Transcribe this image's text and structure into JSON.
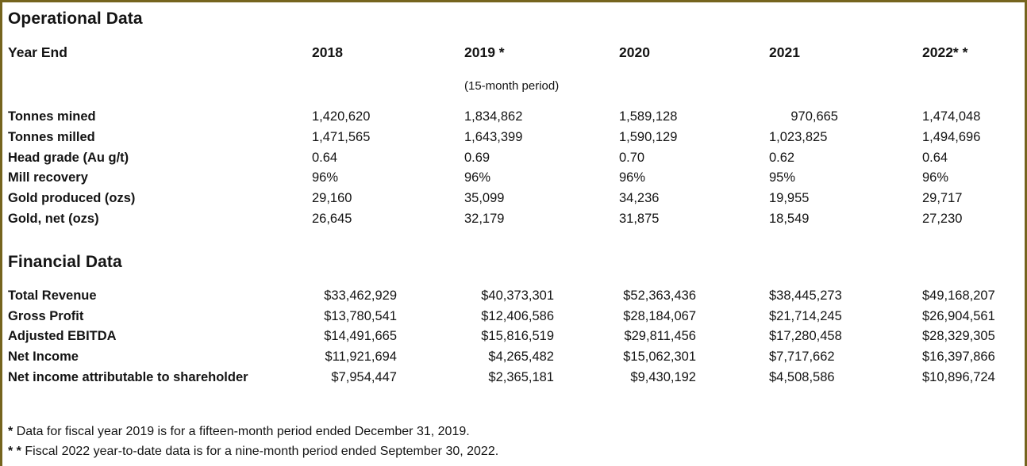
{
  "titles": {
    "operational": "Operational Data",
    "financial": "Financial Data"
  },
  "header": {
    "row_label": "Year End",
    "years": [
      "2018",
      "2019 *",
      "2020",
      "2021",
      "2022* *"
    ],
    "period_note_2019": "(15-month period)"
  },
  "operational": {
    "rows": [
      {
        "label": "Tonnes mined",
        "values": [
          "1,420,620",
          "1,834,862",
          "1,589,128",
          "970,665",
          "1,474,048"
        ]
      },
      {
        "label": "Tonnes milled",
        "values": [
          "1,471,565",
          "1,643,399",
          "1,590,129",
          "1,023,825",
          "1,494,696"
        ]
      },
      {
        "label": "Head grade (Au g/t)",
        "values": [
          "0.64",
          "0.69",
          "0.70",
          "0.62",
          "0.64"
        ]
      },
      {
        "label": "Mill recovery",
        "values": [
          "96%",
          "96%",
          "96%",
          "95%",
          "96%"
        ]
      },
      {
        "label": "Gold produced (ozs)",
        "values": [
          "29,160",
          "35,099",
          "34,236",
          "19,955",
          "29,717"
        ]
      },
      {
        "label": "Gold, net (ozs)",
        "values": [
          "26,645",
          "32,179",
          "31,875",
          "18,549",
          "27,230"
        ]
      }
    ]
  },
  "financial": {
    "rows": [
      {
        "label": "Total Revenue",
        "values": [
          "$33,462,929",
          "$40,373,301",
          "$52,363,436",
          "$38,445,273",
          "$49,168,207"
        ]
      },
      {
        "label": "Gross Profit",
        "values": [
          "$13,780,541",
          "$12,406,586",
          "$28,184,067",
          "$21,714,245",
          "$26,904,561"
        ]
      },
      {
        "label": "Adjusted EBITDA",
        "values": [
          "$14,491,665",
          "$15,816,519",
          "$29,811,456",
          "$17,280,458",
          "$28,329,305"
        ]
      },
      {
        "label": "Net Income",
        "values": [
          "$11,921,694",
          "$4,265,482",
          "$15,062,301",
          "$7,717,662",
          "$16,397,866"
        ]
      },
      {
        "label": "Net income attributable to shareholder",
        "values": [
          "$7,954,447",
          "$2,365,181",
          "$9,430,192",
          "$4,508,586",
          "$10,896,724"
        ]
      }
    ]
  },
  "footnotes": [
    {
      "marker": "*",
      "text": "Data for fiscal year 2019 is for a fifteen-month period ended December 31, 2019."
    },
    {
      "marker": "* *",
      "text": "Fiscal 2022 year-to-date data  is for a nine-month period ended September 30, 2022."
    }
  ],
  "colors": {
    "border": "#75641e",
    "text": "#141414",
    "background": "#ffffff"
  }
}
